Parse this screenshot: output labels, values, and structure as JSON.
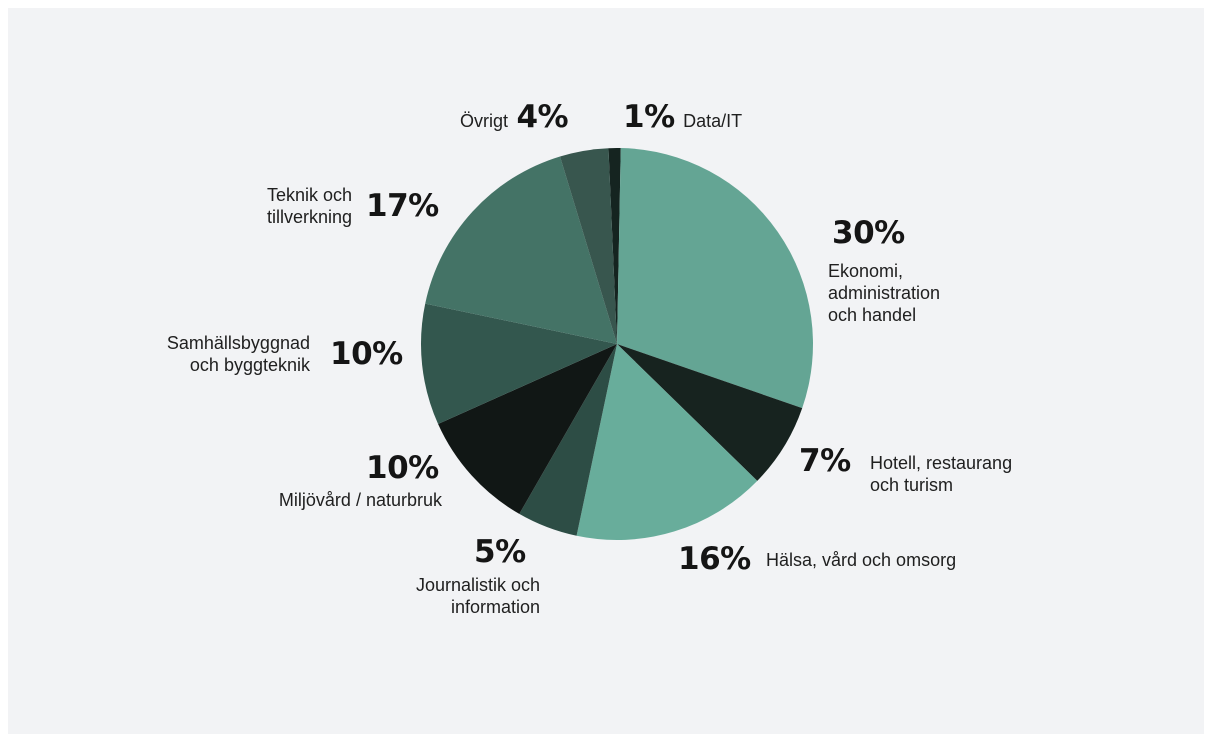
{
  "chart_data": {
    "type": "pie",
    "slices": [
      {
        "label": "Data/IT",
        "value": 1,
        "value_label": "1%",
        "color": "#152420"
      },
      {
        "label": "Ekonomi,\nadministration\noch handel",
        "value": 30,
        "value_label": "30%",
        "color": "#64a594"
      },
      {
        "label": "Hotell, restaurang\noch turism",
        "value": 7,
        "value_label": "7%",
        "color": "#17231f"
      },
      {
        "label": "Hälsa, vård och omsorg",
        "value": 16,
        "value_label": "16%",
        "color": "#68ad9b"
      },
      {
        "label": "Journalistik och\ninformation",
        "value": 5,
        "value_label": "5%",
        "color": "#2d4d45"
      },
      {
        "label": "Miljövård / naturbruk",
        "value": 10,
        "value_label": "10%",
        "color": "#111715"
      },
      {
        "label": "Samhällsbyggnad\noch byggteknik",
        "value": 10,
        "value_label": "10%",
        "color": "#33574e"
      },
      {
        "label": "Teknik och\ntillverkning",
        "value": 17,
        "value_label": "17%",
        "color": "#447366"
      },
      {
        "label": "Övrigt",
        "value": 4,
        "value_label": "4%",
        "color": "#38564e"
      }
    ]
  }
}
